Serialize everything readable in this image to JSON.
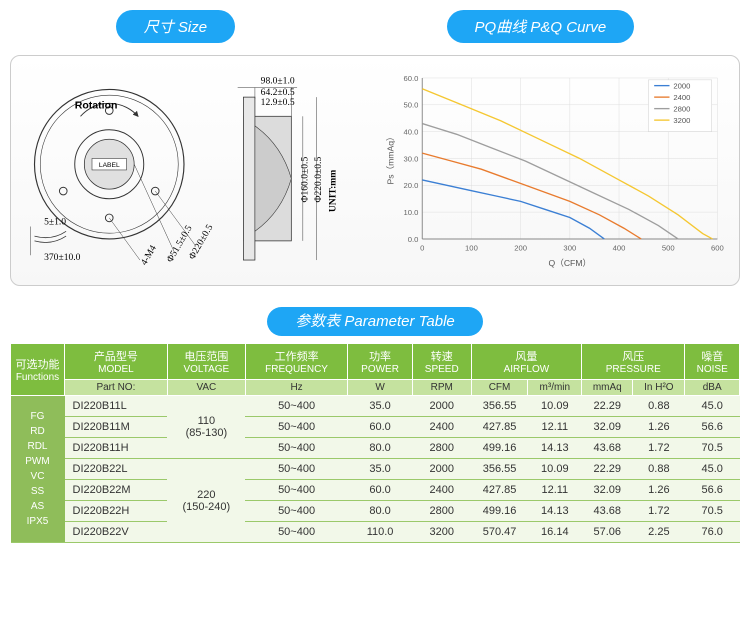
{
  "headers": {
    "size_cn": "尺寸",
    "size_en": "Size",
    "curve_cn": "PQ曲线",
    "curve_en": "P&Q Curve",
    "param_cn": "参数表",
    "param_en": "Parameter Table"
  },
  "diagram": {
    "rotation_label": "Rotation",
    "label_text": "LABEL",
    "unit_label": "UNIT:mm",
    "dims": {
      "d_outer": "Φ220±0.5",
      "d_mid": "Φ51.5±0.5",
      "holes": "4-M4",
      "h_top": "98.0±1.0",
      "h_mid": "64.2±0.5",
      "h_small": "12.9±0.5",
      "v_inner": "Φ160.0±0.5",
      "v_outer": "Φ220.0±0.5",
      "offset": "5±1.0",
      "lead": "370±10.0"
    }
  },
  "chart": {
    "ylabel": "Ps（mmAq）",
    "xlabel": "Q（CFM）",
    "xlim": [
      0,
      600
    ],
    "ylim": [
      0,
      60
    ],
    "xtick": 100,
    "ytick": 10,
    "grid_color": "#dddddd",
    "axis_color": "#888888",
    "legend": [
      "2000",
      "2400",
      "2800",
      "3200"
    ],
    "series": [
      {
        "name": "2000",
        "color": "#3b7fd4",
        "points": [
          [
            0,
            22
          ],
          [
            50,
            20
          ],
          [
            100,
            18
          ],
          [
            150,
            16
          ],
          [
            200,
            14
          ],
          [
            250,
            11
          ],
          [
            300,
            8
          ],
          [
            340,
            4
          ],
          [
            370,
            0
          ]
        ]
      },
      {
        "name": "2400",
        "color": "#e87b2e",
        "points": [
          [
            0,
            32
          ],
          [
            60,
            29
          ],
          [
            120,
            26
          ],
          [
            180,
            22
          ],
          [
            240,
            18
          ],
          [
            300,
            14
          ],
          [
            360,
            9
          ],
          [
            410,
            4
          ],
          [
            445,
            0
          ]
        ]
      },
      {
        "name": "2800",
        "color": "#9e9e9e",
        "points": [
          [
            0,
            43
          ],
          [
            70,
            39
          ],
          [
            140,
            34
          ],
          [
            210,
            29
          ],
          [
            280,
            23
          ],
          [
            350,
            17
          ],
          [
            420,
            11
          ],
          [
            480,
            5
          ],
          [
            520,
            0
          ]
        ]
      },
      {
        "name": "3200",
        "color": "#f5c731",
        "points": [
          [
            0,
            56
          ],
          [
            80,
            50
          ],
          [
            160,
            44
          ],
          [
            240,
            37
          ],
          [
            320,
            30
          ],
          [
            400,
            22
          ],
          [
            460,
            16
          ],
          [
            520,
            9
          ],
          [
            570,
            2
          ],
          [
            590,
            0
          ]
        ]
      }
    ]
  },
  "table": {
    "cols": {
      "func_cn": "可选功能",
      "func_en": "Functions",
      "model_cn": "产品型号",
      "model_en": "MODEL",
      "volt_cn": "电压范围",
      "volt_en": "VOLTAGE",
      "freq_cn": "工作频率",
      "freq_en": "FREQUENCY",
      "power_cn": "功率",
      "power_en": "POWER",
      "speed_cn": "转速",
      "speed_en": "SPEED",
      "air_cn": "风量",
      "air_en": "AIRFLOW",
      "press_cn": "风压",
      "press_en": "PRESSURE",
      "noise_cn": "噪音",
      "noise_en": "NOISE"
    },
    "sub": {
      "partno": "Part NO:",
      "vac": "VAC",
      "hz": "Hz",
      "w": "W",
      "rpm": "RPM",
      "cfm": "CFM",
      "m3": "m³/min",
      "mmaq": "mmAq",
      "inh2o": "In H²O",
      "dba": "dBA"
    },
    "functions": "FG\nRD\nRDL\nPWM\nVC\nSS\nAS\nIPX5",
    "volt_groups": [
      {
        "v": "110",
        "range": "(85-130)",
        "span": 3
      },
      {
        "v": "220",
        "range": "(150-240)",
        "span": 4
      }
    ],
    "rows": [
      {
        "model": "DI220B11L",
        "freq": "50~400",
        "power": "35.0",
        "rpm": "2000",
        "cfm": "356.55",
        "m3": "10.09",
        "mmaq": "22.29",
        "inh2o": "0.88",
        "dba": "45.0"
      },
      {
        "model": "DI220B11M",
        "freq": "50~400",
        "power": "60.0",
        "rpm": "2400",
        "cfm": "427.85",
        "m3": "12.11",
        "mmaq": "32.09",
        "inh2o": "1.26",
        "dba": "56.6"
      },
      {
        "model": "DI220B11H",
        "freq": "50~400",
        "power": "80.0",
        "rpm": "2800",
        "cfm": "499.16",
        "m3": "14.13",
        "mmaq": "43.68",
        "inh2o": "1.72",
        "dba": "70.5"
      },
      {
        "model": "DI220B22L",
        "freq": "50~400",
        "power": "35.0",
        "rpm": "2000",
        "cfm": "356.55",
        "m3": "10.09",
        "mmaq": "22.29",
        "inh2o": "0.88",
        "dba": "45.0"
      },
      {
        "model": "DI220B22M",
        "freq": "50~400",
        "power": "60.0",
        "rpm": "2400",
        "cfm": "427.85",
        "m3": "12.11",
        "mmaq": "32.09",
        "inh2o": "1.26",
        "dba": "56.6"
      },
      {
        "model": "DI220B22H",
        "freq": "50~400",
        "power": "80.0",
        "rpm": "2800",
        "cfm": "499.16",
        "m3": "14.13",
        "mmaq": "43.68",
        "inh2o": "1.72",
        "dba": "70.5"
      },
      {
        "model": "DI220B22V",
        "freq": "50~400",
        "power": "110.0",
        "rpm": "3200",
        "cfm": "570.47",
        "m3": "16.14",
        "mmaq": "57.06",
        "inh2o": "2.25",
        "dba": "76.0"
      }
    ]
  }
}
